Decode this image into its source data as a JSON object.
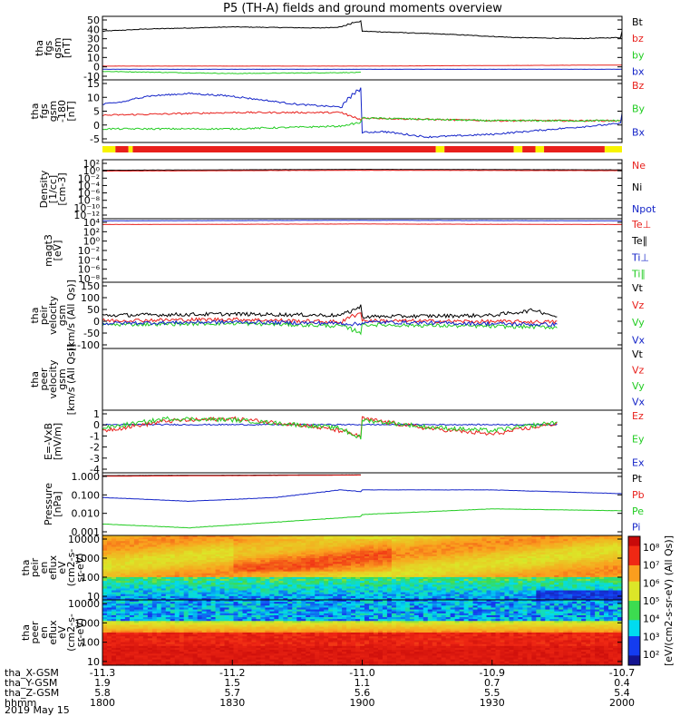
{
  "chart_data": {
    "type": "line",
    "title": "P5 (TH-A) fields and ground moments overview",
    "date_label": "2019 May 15",
    "colors": {
      "black": "#000000",
      "red": "#e8201c",
      "green": "#22cc22",
      "blue": "#1424c8",
      "yellow": "#f8f400"
    },
    "x_axis": {
      "row_labels": [
        "tha_X-GSM",
        "tha_Y-GSM",
        "tha_Z-GSM",
        "hhmm"
      ],
      "columns": [
        [
          "-11.3",
          "1.9",
          "5.8",
          "1800"
        ],
        [
          "-11.2",
          "1.5",
          "5.7",
          "1830"
        ],
        [
          "-11.0",
          "1.1",
          "5.6",
          "1900"
        ],
        [
          "-10.9",
          "0.7",
          "5.5",
          "1930"
        ],
        [
          "-10.7",
          "0.4",
          "5.4",
          "2000"
        ]
      ]
    },
    "panels": [
      {
        "key": "fgs",
        "ylabel": [
          "tha",
          "fgs",
          "gsm",
          "[nT]"
        ],
        "ticks": [
          "50",
          "40",
          "30",
          "20",
          "10",
          "0",
          "-10"
        ],
        "yrange": [
          -10,
          50
        ],
        "legend": [
          {
            "text": "Bt",
            "color": "#000000"
          },
          {
            "text": "bz",
            "color": "#e8201c"
          },
          {
            "text": "by",
            "color": "#22cc22"
          },
          {
            "text": "bx",
            "color": "#1424c8"
          }
        ],
        "series": [
          {
            "name": "Bt",
            "color": "#000000",
            "kx": [
              1800,
              1810,
              1830,
              1850,
              1855,
              1858,
              1862,
              1868,
              1880,
              1900,
              1920,
              1935,
              1950,
              1960,
              1980,
              2000
            ],
            "ky": [
              36,
              38,
              40,
              39,
              40,
              44,
              47,
              44,
              40,
              36,
              33,
              30,
              29,
              30,
              32,
              36
            ]
          },
          {
            "name": "bz",
            "color": "#e8201c",
            "kx": [
              1800,
              1900,
              2000
            ],
            "ky": [
              3,
              3,
              4
            ]
          },
          {
            "name": "by",
            "color": "#22cc22",
            "kx": [
              1800,
              1830,
              1860,
              1900,
              1950,
              2000
            ],
            "ky": [
              -2,
              -4,
              -3,
              -1,
              0,
              2
            ]
          },
          {
            "name": "bx",
            "color": "#1424c8",
            "kx": [
              1800,
              1900,
              2000
            ],
            "ky": [
              0,
              0,
              0
            ]
          }
        ]
      },
      {
        "key": "fgs_dsl",
        "ylabel": [
          "tha",
          "fgs",
          "gsm",
          "-180",
          "[nT]"
        ],
        "ticks": [
          "15",
          "10",
          "5",
          "0",
          "-5"
        ],
        "yrange": [
          -8,
          15
        ],
        "legend": [
          {
            "text": "Bz",
            "color": "#e8201c"
          },
          {
            "text": "By",
            "color": "#22cc22"
          },
          {
            "text": "Bx",
            "color": "#1424c8"
          }
        ],
        "series": [
          {
            "name": "Bx",
            "color": "#1424c8",
            "kx": [
              1800,
              1805,
              1810,
              1820,
              1830,
              1845,
              1855,
              1858,
              1862,
              1866,
              1870,
              1880,
              1895,
              1905,
              1915,
              1930,
              1945,
              1960,
              1980,
              2000
            ],
            "ky": [
              6,
              7,
              9,
              10,
              9,
              6,
              5,
              10,
              14,
              12,
              8,
              2,
              -2,
              -4,
              -6,
              -5,
              -3,
              -1,
              0,
              3
            ]
          },
          {
            "name": "Bz",
            "color": "#e8201c",
            "kx": [
              1800,
              1830,
              1855,
              1862,
              1866,
              1880,
              1900,
              1930,
              1960,
              2000
            ],
            "ky": [
              2,
              3,
              3,
              -1,
              -3,
              0,
              1,
              0,
              0,
              1
            ]
          },
          {
            "name": "By",
            "color": "#22cc22",
            "kx": [
              1800,
              1830,
              1855,
              1862,
              1868,
              1880,
              1900,
              1930,
              1960,
              2000
            ],
            "ky": [
              -3,
              -3,
              -2,
              0,
              3,
              2,
              1,
              0,
              0,
              2
            ]
          }
        ]
      },
      {
        "key": "density",
        "ylabel": [
          "Density",
          "[1/cc]",
          "[cm-3]"
        ],
        "ticks": [
          "10²",
          "10⁰",
          "10⁻²",
          "10⁻⁴",
          "10⁻⁶",
          "10⁻⁸",
          "10⁻¹⁰",
          "10⁻¹²"
        ],
        "yrange": [
          -12,
          2
        ],
        "log": true,
        "legend": [
          {
            "text": "Ne",
            "color": "#e8201c"
          },
          {
            "text": "Ni",
            "color": "#000000"
          },
          {
            "text": "Npot",
            "color": "#1424c8"
          }
        ],
        "series": [
          {
            "name": "Ni",
            "color": "#000000",
            "kx": [
              1800,
              1900,
              2000
            ],
            "ky": [
              -0.5,
              -0.3,
              -0.4
            ]
          },
          {
            "name": "Ne",
            "color": "#e8201c",
            "kx": [
              1800,
              1900,
              2000
            ],
            "ky": [
              -0.7,
              -0.5,
              -0.6
            ]
          }
        ]
      },
      {
        "key": "temp",
        "ylabel": [
          "magt3",
          "[eV]"
        ],
        "ticks": [
          "10⁴",
          "10²",
          "10⁰",
          "10⁻²",
          "10⁻⁴",
          "10⁻⁶",
          "10⁻⁸"
        ],
        "yrange": [
          -8,
          4
        ],
        "log": true,
        "legend": [
          {
            "text": "Te⊥",
            "color": "#e8201c"
          },
          {
            "text": "Te∥",
            "color": "#000000"
          },
          {
            "text": "Ti⊥",
            "color": "#1424c8"
          },
          {
            "text": "Ti∥",
            "color": "#22cc22"
          }
        ],
        "series": [
          {
            "name": "Ti⊥",
            "color": "#1424c8",
            "kx": [
              1800,
              1900,
              2000
            ],
            "ky": [
              3.6,
              3.7,
              3.6
            ]
          },
          {
            "name": "Te⊥",
            "color": "#e8201c",
            "kx": [
              1800,
              1900,
              2000
            ],
            "ky": [
              2.9,
              3.0,
              2.9
            ]
          }
        ]
      },
      {
        "key": "vi",
        "ylabel": [
          "tha",
          "peir",
          "velocity",
          "gsm",
          "[km/s (All Qs)]"
        ],
        "ticks": [
          "150",
          "100",
          "50",
          "0",
          "-50",
          "-100"
        ],
        "yrange": [
          -100,
          150
        ],
        "legend": [
          {
            "text": "Vt",
            "color": "#000000"
          },
          {
            "text": "Vz",
            "color": "#e8201c"
          },
          {
            "text": "Vy",
            "color": "#22cc22"
          },
          {
            "text": "Vx",
            "color": "#1424c8"
          }
        ],
        "series": [
          {
            "name": "Vt",
            "color": "#000000",
            "kx": [
              1800,
              1830,
              1855,
              1860,
              1863,
              1866,
              1870,
              1880,
              1900,
              1930,
              1940,
              1945
            ],
            "ky": [
              25,
              30,
              25,
              60,
              110,
              60,
              30,
              25,
              20,
              25,
              45,
              20
            ]
          },
          {
            "name": "Vz",
            "color": "#e8201c",
            "kx": [
              1800,
              1830,
              1855,
              1860,
              1863,
              1866,
              1870,
              1900,
              1945
            ],
            "ky": [
              5,
              10,
              0,
              40,
              90,
              20,
              0,
              5,
              0
            ]
          },
          {
            "name": "Vy",
            "color": "#22cc22",
            "kx": [
              1800,
              1830,
              1855,
              1860,
              1864,
              1868,
              1880,
              1900,
              1945
            ],
            "ky": [
              -10,
              -5,
              -15,
              -40,
              -10,
              10,
              -5,
              -10,
              -20
            ]
          },
          {
            "name": "Vx",
            "color": "#1424c8",
            "kx": [
              1800,
              1830,
              1855,
              1860,
              1864,
              1870,
              1900,
              1945
            ],
            "ky": [
              -5,
              0,
              -5,
              -10,
              -30,
              -5,
              0,
              -10
            ]
          }
        ]
      },
      {
        "key": "ve",
        "ylabel": [
          "tha",
          "peer",
          "velocity",
          "gsm",
          "[km/s (All Qs)]"
        ],
        "ticks": [],
        "yrange": [
          -100,
          150
        ],
        "legend": [
          {
            "text": "Vt",
            "color": "#000000"
          },
          {
            "text": "Vz",
            "color": "#e8201c"
          },
          {
            "text": "Vy",
            "color": "#22cc22"
          },
          {
            "text": "Vx",
            "color": "#1424c8"
          }
        ],
        "series": []
      },
      {
        "key": "efield",
        "ylabel": [
          "E=-VxB",
          "[mV/m]"
        ],
        "ticks": [
          "1",
          "0",
          "-1",
          "-2",
          "-3",
          "-4"
        ],
        "yrange": [
          -4,
          1.2
        ],
        "legend": [
          {
            "text": "Ez",
            "color": "#e8201c"
          },
          {
            "text": "Ey",
            "color": "#22cc22"
          },
          {
            "text": "Ex",
            "color": "#1424c8"
          }
        ],
        "series": [
          {
            "name": "Ex",
            "color": "#1424c8",
            "kx": [
              1800,
              1945
            ],
            "ky": [
              0,
              0
            ]
          },
          {
            "name": "Ez",
            "color": "#e8201c",
            "kx": [
              1800,
              1815,
              1830,
              1845,
              1855,
              1860,
              1864,
              1870,
              1880,
              1900,
              1915,
              1930,
              1945
            ],
            "ky": [
              -0.5,
              0.3,
              0.5,
              0,
              -0.5,
              -1,
              -2.5,
              -1,
              0,
              0.5,
              -0.3,
              -0.8,
              0.1
            ]
          },
          {
            "name": "Ey",
            "color": "#22cc22",
            "kx": [
              1800,
              1815,
              1830,
              1845,
              1855,
              1860,
              1864,
              1870,
              1880,
              1900,
              1915,
              1930,
              1945
            ],
            "ky": [
              -0.3,
              0.5,
              0.4,
              0,
              -0.3,
              -1.2,
              -3,
              -1.5,
              -0.2,
              0.4,
              -0.2,
              -0.5,
              0.2
            ]
          }
        ]
      },
      {
        "key": "pressure",
        "ylabel": [
          "Pressure",
          "[nPa]"
        ],
        "ticks": [
          "1.000",
          "0.100",
          "0.010",
          "0.001"
        ],
        "yrange": [
          -3.2,
          0.1
        ],
        "log": true,
        "legend": [
          {
            "text": "Pt",
            "color": "#000000"
          },
          {
            "text": "Pb",
            "color": "#e8201c"
          },
          {
            "text": "Pe",
            "color": "#22cc22"
          },
          {
            "text": "Pi",
            "color": "#1424c8"
          }
        ],
        "series": [
          {
            "name": "Pt",
            "color": "#000000",
            "kx": [
              1800,
              1860,
              1900,
              2000
            ],
            "ky": [
              -0.05,
              0.0,
              -0.03,
              -0.08
            ]
          },
          {
            "name": "Pb",
            "color": "#e8201c",
            "kx": [
              1800,
              1860,
              1900,
              2000
            ],
            "ky": [
              -0.08,
              -0.02,
              -0.06,
              -0.12
            ]
          },
          {
            "name": "Pi",
            "color": "#1424c8",
            "kx": [
              1800,
              1820,
              1840,
              1855,
              1870,
              1900,
              1930,
              2000
            ],
            "ky": [
              -1.2,
              -1.4,
              -1.2,
              -0.8,
              -1.1,
              -0.8,
              -0.8,
              -1.0
            ]
          },
          {
            "name": "Pe",
            "color": "#22cc22",
            "kx": [
              1800,
              1820,
              1840,
              1860,
              1880,
              1930,
              2000
            ],
            "ky": [
              -2.6,
              -2.8,
              -2.5,
              -2.2,
              -1.9,
              -1.8,
              -1.9
            ]
          }
        ]
      },
      {
        "key": "ion_spec",
        "ylabel": [
          "tha",
          "peir",
          "en",
          "eflux",
          "eV",
          "(cm2-s-",
          "sr-eV)"
        ],
        "ticks": [
          "10000",
          "1000",
          "100",
          "10"
        ],
        "spectrogram": true
      },
      {
        "key": "ele_spec",
        "ylabel": [
          "tha",
          "peer",
          "en",
          "eflux",
          "eV",
          "(cm2-s-",
          "sr-eV)"
        ],
        "ticks": [
          "10000",
          "1000",
          "100",
          "10"
        ],
        "spectrogram": true
      }
    ],
    "colorbar": {
      "label": "[eV/(cm2-s-sr-eV) (All Qs)]",
      "ticks": [
        "10⁸",
        "10⁷",
        "10⁶",
        "10⁵",
        "10⁴",
        "10³",
        "10²"
      ]
    },
    "status_bar": {
      "segments": [
        [
          "1800",
          "1803",
          "#f8f400"
        ],
        [
          "1803",
          "1806",
          "#e8201c"
        ],
        [
          "1806",
          "1807",
          "#f8f400"
        ],
        [
          "1807",
          "1877",
          "#e8201c"
        ],
        [
          "1877",
          "1879",
          "#f8f400"
        ],
        [
          "1879",
          "1895",
          "#e8201c"
        ],
        [
          "1895",
          "1897",
          "#f8f400"
        ],
        [
          "1897",
          "1940",
          "#e8201c"
        ],
        [
          "1940",
          "1942",
          "#f8f400"
        ],
        [
          "1942",
          "1956",
          "#e8201c"
        ],
        [
          "1956",
          "2000",
          "#f8f400"
        ]
      ]
    }
  }
}
